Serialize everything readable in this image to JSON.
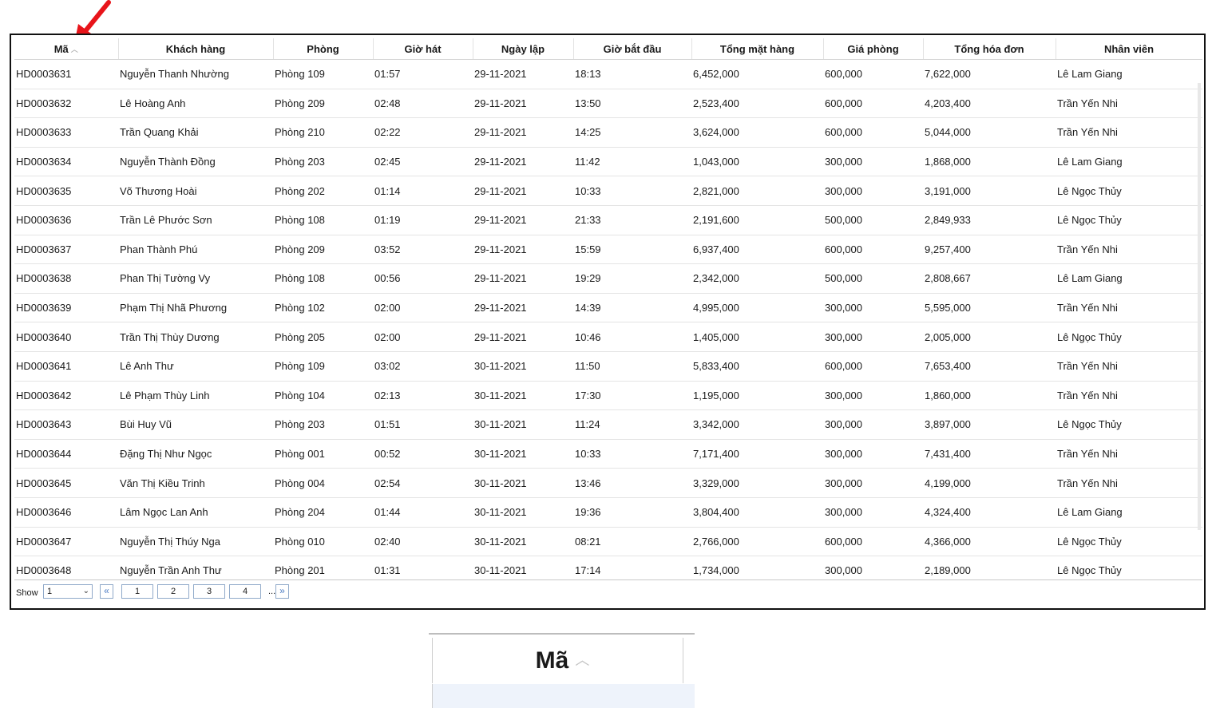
{
  "grid": {
    "columns": [
      {
        "label": "Mã",
        "sorted": "ascending"
      },
      {
        "label": "Khách hàng"
      },
      {
        "label": "Phòng"
      },
      {
        "label": "Giờ hát"
      },
      {
        "label": "Ngày lập"
      },
      {
        "label": "Giờ bắt đầu"
      },
      {
        "label": "Tổng mặt hàng"
      },
      {
        "label": "Giá phòng"
      },
      {
        "label": "Tổng hóa đơn"
      },
      {
        "label": "Nhân viên"
      }
    ],
    "rows": [
      [
        "HD0003631",
        "Nguyễn Thanh Nhường",
        "Phòng 109",
        "01:57",
        "29-11-2021",
        "18:13",
        "6,452,000",
        "600,000",
        "7,622,000",
        "Lê Lam Giang"
      ],
      [
        "HD0003632",
        "Lê Hoàng Anh",
        "Phòng 209",
        "02:48",
        "29-11-2021",
        "13:50",
        "2,523,400",
        "600,000",
        "4,203,400",
        "Trần Yến Nhi"
      ],
      [
        "HD0003633",
        "Trần Quang Khải",
        "Phòng 210",
        "02:22",
        "29-11-2021",
        "14:25",
        "3,624,000",
        "600,000",
        "5,044,000",
        "Trần Yến Nhi"
      ],
      [
        "HD0003634",
        "Nguyễn Thành Đồng",
        "Phòng 203",
        "02:45",
        "29-11-2021",
        "11:42",
        "1,043,000",
        "300,000",
        "1,868,000",
        "Lê Lam Giang"
      ],
      [
        "HD0003635",
        "Võ Thương Hoài",
        "Phòng 202",
        "01:14",
        "29-11-2021",
        "10:33",
        "2,821,000",
        "300,000",
        "3,191,000",
        "Lê Ngọc Thủy"
      ],
      [
        "HD0003636",
        "Trần Lê Phước Sơn",
        "Phòng 108",
        "01:19",
        "29-11-2021",
        "21:33",
        "2,191,600",
        "500,000",
        "2,849,933",
        "Lê Ngọc Thủy"
      ],
      [
        "HD0003637",
        "Phan Thành Phú",
        "Phòng 209",
        "03:52",
        "29-11-2021",
        "15:59",
        "6,937,400",
        "600,000",
        "9,257,400",
        "Trần Yến Nhi"
      ],
      [
        "HD0003638",
        "Phan Thị Tường Vy",
        "Phòng 108",
        "00:56",
        "29-11-2021",
        "19:29",
        "2,342,000",
        "500,000",
        "2,808,667",
        "Lê Lam Giang"
      ],
      [
        "HD0003639",
        "Phạm Thị Nhã Phương",
        "Phòng 102",
        "02:00",
        "29-11-2021",
        "14:39",
        "4,995,000",
        "300,000",
        "5,595,000",
        "Trần Yến Nhi"
      ],
      [
        "HD0003640",
        "Trần Thị Thùy Dương",
        "Phòng 205",
        "02:00",
        "29-11-2021",
        "10:46",
        "1,405,000",
        "300,000",
        "2,005,000",
        "Lê Ngọc Thủy"
      ],
      [
        "HD0003641",
        "Lê Anh Thư",
        "Phòng 109",
        "03:02",
        "30-11-2021",
        "11:50",
        "5,833,400",
        "600,000",
        "7,653,400",
        "Trần Yến Nhi"
      ],
      [
        "HD0003642",
        "Lê Phạm Thùy Linh",
        "Phòng 104",
        "02:13",
        "30-11-2021",
        "17:30",
        "1,195,000",
        "300,000",
        "1,860,000",
        "Trần Yến Nhi"
      ],
      [
        "HD0003643",
        "Bùi Huy Vũ",
        "Phòng 203",
        "01:51",
        "30-11-2021",
        "11:24",
        "3,342,000",
        "300,000",
        "3,897,000",
        "Lê Ngọc Thủy"
      ],
      [
        "HD0003644",
        "Đặng Thị Như Ngọc",
        "Phòng 001",
        "00:52",
        "30-11-2021",
        "10:33",
        "7,171,400",
        "300,000",
        "7,431,400",
        "Trần Yến Nhi"
      ],
      [
        "HD0003645",
        "Văn Thị Kiều Trinh",
        "Phòng 004",
        "02:54",
        "30-11-2021",
        "13:46",
        "3,329,000",
        "300,000",
        "4,199,000",
        "Trần Yến Nhi"
      ],
      [
        "HD0003646",
        "Lâm Ngọc Lan Anh",
        "Phòng 204",
        "01:44",
        "30-11-2021",
        "19:36",
        "3,804,400",
        "300,000",
        "4,324,400",
        "Lê Lam Giang"
      ],
      [
        "HD0003647",
        "Nguyễn Thị Thúy Nga",
        "Phòng 010",
        "02:40",
        "30-11-2021",
        "08:21",
        "2,766,000",
        "600,000",
        "4,366,000",
        "Lê Ngọc Thủy"
      ],
      [
        "HD0003648",
        "Nguyễn Trần Anh Thư",
        "Phòng 201",
        "01:31",
        "30-11-2021",
        "17:14",
        "1,734,000",
        "300,000",
        "2,189,000",
        "Lê Ngọc Thủy"
      ]
    ]
  },
  "pager": {
    "show_label": "Show",
    "page_size_value": "1",
    "first_icon": "double-chevron-left-icon",
    "first_glyph": "«",
    "pages": [
      "1",
      "2",
      "3",
      "4"
    ],
    "ellipsis": "...",
    "next_icon": "double-chevron-right-icon",
    "next_glyph": "»"
  },
  "zoom_callout": {
    "label": "Mã",
    "icon": "sort-ascending-icon"
  },
  "colors": {
    "annotation_arrow": "#e8141a",
    "pager_border": "#8fa9c9",
    "pager_icon": "#4c7cc3",
    "zoom_row_band": "#eef3fb"
  }
}
